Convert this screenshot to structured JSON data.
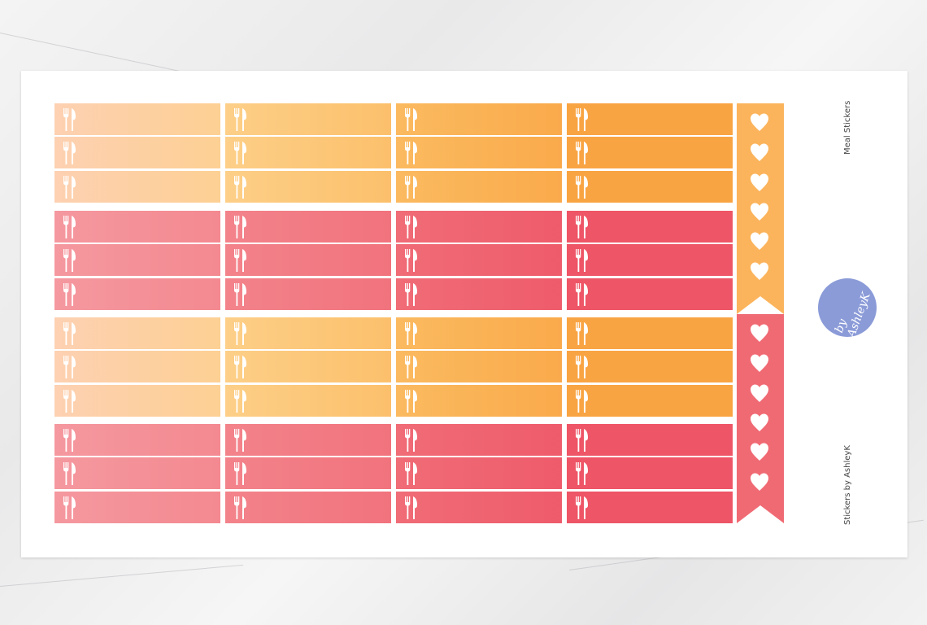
{
  "sheet": {
    "title": "Meal Stickers",
    "credit": "Stickers by AshleyK",
    "logo_text": "by AshleyK"
  },
  "sticker_icon": "fork-knife-icon",
  "flag_icon": "heart-icon",
  "palettes": {
    "peach": [
      "#fdd1b2",
      "#fdcf88",
      "#fbba60",
      "#f9a443"
    ],
    "pink": [
      "#f5989f",
      "#f3838b",
      "#f06c77",
      "#ee5566"
    ]
  },
  "groups": [
    "peach",
    "pink",
    "peach",
    "pink"
  ],
  "flags": {
    "top_color": "#fbb45c",
    "bottom_color": "#f06a74",
    "logo_color": "#8b9bd8"
  }
}
